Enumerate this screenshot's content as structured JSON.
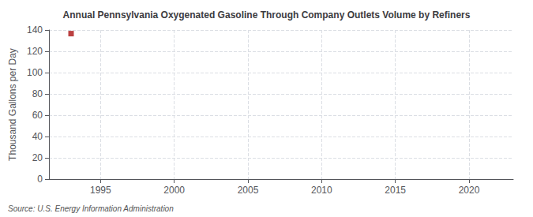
{
  "chart_data": {
    "type": "scatter",
    "title": "Annual Pennsylvania Oxygenated Gasoline Through Company Outlets Volume by Refiners",
    "ylabel": "Thousand Gallons per Day",
    "source": "Source: U.S. Energy Information Administration",
    "x": [
      1993
    ],
    "values": [
      136.6
    ],
    "color": "#aa1111",
    "marker": "square",
    "xlim": [
      1991.5,
      2023
    ],
    "ylim": [
      0,
      140
    ],
    "xticks": [
      1995,
      2000,
      2005,
      2010,
      2015,
      2020
    ],
    "yticks": [
      0,
      20,
      40,
      60,
      80,
      100,
      120,
      140
    ],
    "grid": true
  }
}
